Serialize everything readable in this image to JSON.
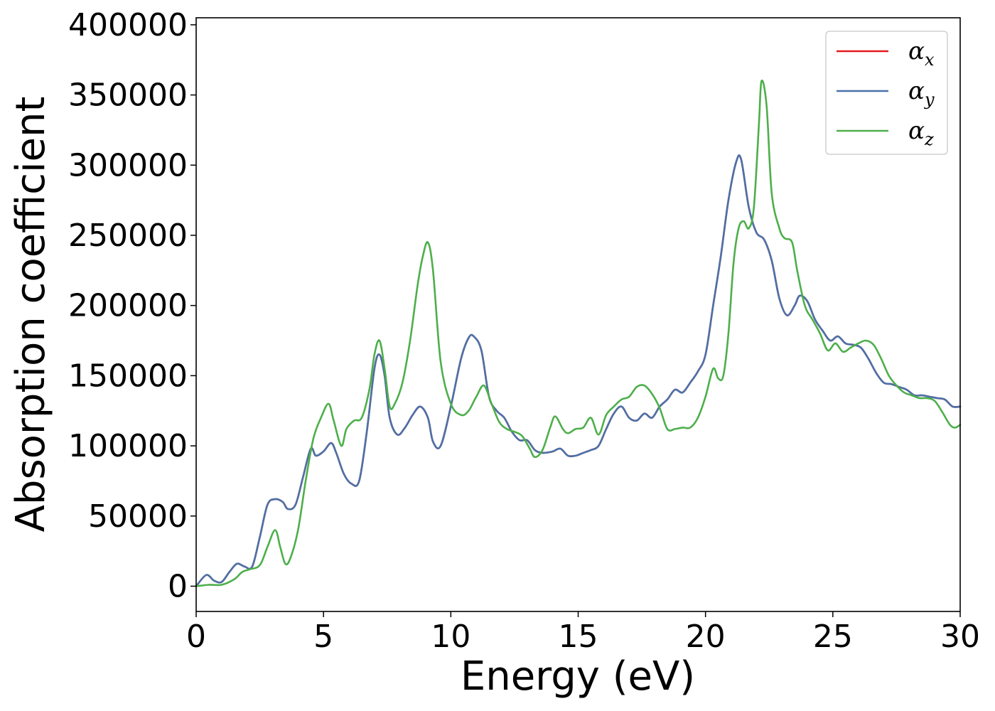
{
  "chart_data": {
    "type": "line",
    "xlabel": "Energy (eV)",
    "ylabel": "Absorption coefficient",
    "xlim": [
      0,
      30
    ],
    "ylim": [
      -18000,
      405000
    ],
    "xticks": [
      0,
      5,
      10,
      15,
      20,
      25,
      30
    ],
    "yticks": [
      0,
      50000,
      100000,
      150000,
      200000,
      250000,
      300000,
      350000,
      400000
    ],
    "grid": false,
    "legend_position": "top-right",
    "series": [
      {
        "name": "αx",
        "base": "α",
        "sub": "x",
        "color": "#e41a1c",
        "x": [
          0,
          0.4,
          0.7,
          1.0,
          1.3,
          1.6,
          1.9,
          2.2,
          2.5,
          2.8,
          3.1,
          3.4,
          3.6,
          3.9,
          4.2,
          4.5,
          4.7,
          5.0,
          5.3,
          5.5,
          5.8,
          6.1,
          6.4,
          6.7,
          7.0,
          7.2,
          7.4,
          7.6,
          7.9,
          8.2,
          8.5,
          8.8,
          9.1,
          9.3,
          9.6,
          10.0,
          10.4,
          10.7,
          10.9,
          11.2,
          11.5,
          11.8,
          12.1,
          12.4,
          12.7,
          13.0,
          13.3,
          13.6,
          14.0,
          14.3,
          14.6,
          14.9,
          15.2,
          15.5,
          15.8,
          16.1,
          16.4,
          16.7,
          17.0,
          17.3,
          17.6,
          17.9,
          18.2,
          18.5,
          18.8,
          19.1,
          19.4,
          19.7,
          20.0,
          20.3,
          20.6,
          20.9,
          21.2,
          21.4,
          21.7,
          22.0,
          22.3,
          22.6,
          22.9,
          23.2,
          23.5,
          23.7,
          24.0,
          24.3,
          24.6,
          24.9,
          25.2,
          25.5,
          25.8,
          26.1,
          26.4,
          26.7,
          27.0,
          27.3,
          27.6,
          27.9,
          28.2,
          28.5,
          28.8,
          29.1,
          29.4,
          29.7,
          30.0
        ],
        "y": [
          0,
          8000,
          4000,
          3000,
          10000,
          16000,
          14000,
          14000,
          35000,
          58000,
          62000,
          60000,
          55000,
          58000,
          78000,
          98000,
          93000,
          96000,
          102000,
          95000,
          80000,
          73000,
          75000,
          110000,
          155000,
          165000,
          150000,
          120000,
          108000,
          113000,
          122000,
          128000,
          120000,
          103000,
          100000,
          128000,
          162000,
          177000,
          178000,
          168000,
          135000,
          125000,
          120000,
          110000,
          104000,
          104000,
          97000,
          95000,
          96000,
          98000,
          93000,
          93000,
          95000,
          97000,
          100000,
          112000,
          123000,
          128000,
          120000,
          118000,
          123000,
          120000,
          128000,
          133000,
          140000,
          138000,
          145000,
          153000,
          165000,
          200000,
          235000,
          275000,
          302000,
          304000,
          270000,
          252000,
          247000,
          232000,
          205000,
          193000,
          200000,
          207000,
          203000,
          190000,
          182000,
          175000,
          178000,
          173000,
          172000,
          170000,
          162000,
          152000,
          145000,
          144000,
          142000,
          140000,
          136000,
          136000,
          135000,
          134000,
          133000,
          128000,
          128000
        ]
      },
      {
        "name": "αy",
        "base": "α",
        "sub": "y",
        "color": "#4a72a9",
        "x": [
          0,
          0.4,
          0.7,
          1.0,
          1.3,
          1.6,
          1.9,
          2.2,
          2.5,
          2.8,
          3.1,
          3.4,
          3.6,
          3.9,
          4.2,
          4.5,
          4.7,
          5.0,
          5.3,
          5.5,
          5.8,
          6.1,
          6.4,
          6.7,
          7.0,
          7.2,
          7.4,
          7.6,
          7.9,
          8.2,
          8.5,
          8.8,
          9.1,
          9.3,
          9.6,
          10.0,
          10.4,
          10.7,
          10.9,
          11.2,
          11.5,
          11.8,
          12.1,
          12.4,
          12.7,
          13.0,
          13.3,
          13.6,
          14.0,
          14.3,
          14.6,
          14.9,
          15.2,
          15.5,
          15.8,
          16.1,
          16.4,
          16.7,
          17.0,
          17.3,
          17.6,
          17.9,
          18.2,
          18.5,
          18.8,
          19.1,
          19.4,
          19.7,
          20.0,
          20.3,
          20.6,
          20.9,
          21.2,
          21.4,
          21.7,
          22.0,
          22.3,
          22.6,
          22.9,
          23.2,
          23.5,
          23.7,
          24.0,
          24.3,
          24.6,
          24.9,
          25.2,
          25.5,
          25.8,
          26.1,
          26.4,
          26.7,
          27.0,
          27.3,
          27.6,
          27.9,
          28.2,
          28.5,
          28.8,
          29.1,
          29.4,
          29.7,
          30.0
        ],
        "y": [
          0,
          8000,
          4000,
          3000,
          10000,
          16000,
          14000,
          14000,
          35000,
          58000,
          62000,
          60000,
          55000,
          58000,
          78000,
          98000,
          93000,
          96000,
          102000,
          95000,
          80000,
          73000,
          75000,
          110000,
          155000,
          165000,
          150000,
          120000,
          108000,
          113000,
          122000,
          128000,
          120000,
          103000,
          100000,
          128000,
          162000,
          177000,
          178000,
          168000,
          135000,
          125000,
          120000,
          110000,
          104000,
          104000,
          97000,
          95000,
          96000,
          98000,
          93000,
          93000,
          95000,
          97000,
          100000,
          112000,
          123000,
          128000,
          120000,
          118000,
          123000,
          120000,
          128000,
          133000,
          140000,
          138000,
          145000,
          153000,
          165000,
          200000,
          235000,
          275000,
          302000,
          304000,
          270000,
          252000,
          247000,
          232000,
          205000,
          193000,
          200000,
          207000,
          203000,
          190000,
          182000,
          175000,
          178000,
          173000,
          172000,
          170000,
          162000,
          152000,
          145000,
          144000,
          142000,
          140000,
          136000,
          136000,
          135000,
          134000,
          133000,
          128000,
          128000
        ]
      },
      {
        "name": "αz",
        "base": "α",
        "sub": "z",
        "color": "#4daf4a",
        "x": [
          0,
          0.5,
          1.0,
          1.5,
          1.8,
          2.1,
          2.5,
          2.8,
          3.1,
          3.3,
          3.5,
          3.7,
          4.0,
          4.3,
          4.6,
          4.9,
          5.2,
          5.4,
          5.7,
          5.9,
          6.2,
          6.5,
          6.8,
          7.0,
          7.2,
          7.4,
          7.6,
          7.8,
          8.1,
          8.4,
          8.7,
          8.9,
          9.1,
          9.3,
          9.6,
          10.0,
          10.4,
          10.7,
          11.0,
          11.3,
          11.6,
          11.9,
          12.2,
          12.5,
          12.8,
          13.1,
          13.3,
          13.6,
          13.9,
          14.1,
          14.4,
          14.6,
          14.9,
          15.2,
          15.5,
          15.8,
          16.1,
          16.4,
          16.7,
          17.0,
          17.3,
          17.6,
          17.9,
          18.2,
          18.5,
          18.8,
          19.1,
          19.4,
          19.7,
          20.0,
          20.3,
          20.5,
          20.7,
          20.9,
          21.1,
          21.3,
          21.5,
          21.7,
          21.9,
          22.1,
          22.2,
          22.4,
          22.6,
          22.9,
          23.1,
          23.4,
          23.6,
          23.9,
          24.2,
          24.5,
          24.8,
          25.1,
          25.4,
          25.7,
          26.0,
          26.3,
          26.6,
          26.9,
          27.2,
          27.5,
          27.8,
          28.1,
          28.4,
          28.7,
          29.0,
          29.3,
          29.6,
          29.8,
          30.0
        ],
        "y": [
          0,
          1000,
          1000,
          5000,
          10000,
          12000,
          15000,
          28000,
          40000,
          28000,
          16000,
          20000,
          40000,
          75000,
          105000,
          120000,
          130000,
          118000,
          100000,
          112000,
          118000,
          120000,
          140000,
          165000,
          175000,
          155000,
          128000,
          130000,
          145000,
          175000,
          215000,
          235000,
          245000,
          225000,
          160000,
          130000,
          122000,
          125000,
          135000,
          143000,
          130000,
          117000,
          112000,
          110000,
          107000,
          98000,
          92000,
          97000,
          113000,
          121000,
          112000,
          109000,
          112000,
          113000,
          120000,
          108000,
          122000,
          128000,
          133000,
          135000,
          142000,
          143000,
          137000,
          127000,
          112000,
          112000,
          113000,
          113000,
          120000,
          135000,
          155000,
          148000,
          150000,
          180000,
          230000,
          255000,
          260000,
          255000,
          270000,
          330000,
          360000,
          342000,
          280000,
          255000,
          248000,
          245000,
          225000,
          200000,
          190000,
          180000,
          168000,
          173000,
          167000,
          170000,
          173000,
          175000,
          172000,
          162000,
          150000,
          143000,
          138000,
          136000,
          134000,
          134000,
          132000,
          124000,
          115000,
          113000,
          115000
        ]
      }
    ]
  }
}
